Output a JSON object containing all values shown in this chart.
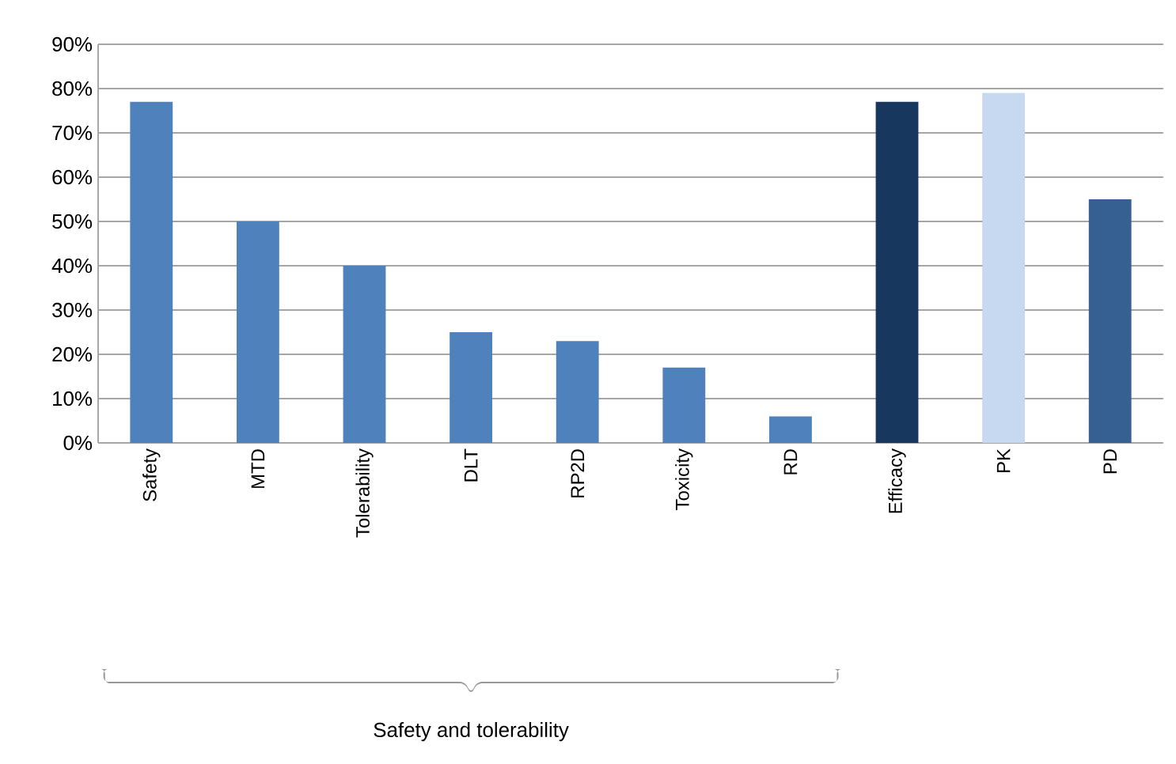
{
  "chart_data": {
    "type": "bar",
    "categories": [
      "Safety",
      "MTD",
      "Tolerability",
      "DLT",
      "RP2D",
      "Toxicity",
      "RD",
      "Efficacy",
      "PK",
      "PD"
    ],
    "values": [
      77,
      50,
      40,
      25,
      23,
      17,
      6,
      77,
      79,
      55
    ],
    "colors": [
      "#4f81bd",
      "#4f81bd",
      "#4f81bd",
      "#4f81bd",
      "#4f81bd",
      "#4f81bd",
      "#4f81bd",
      "#17375e",
      "#c6d9f0",
      "#366092"
    ],
    "ylim": [
      0,
      90
    ],
    "yticks": [
      {
        "value": 0,
        "label": "0%"
      },
      {
        "value": 10,
        "label": "10%"
      },
      {
        "value": 20,
        "label": "20%"
      },
      {
        "value": 30,
        "label": "30%"
      },
      {
        "value": 40,
        "label": "40%"
      },
      {
        "value": 50,
        "label": "50%"
      },
      {
        "value": 60,
        "label": "60%"
      },
      {
        "value": 70,
        "label": "70%"
      },
      {
        "value": 80,
        "label": "80%"
      },
      {
        "value": 90,
        "label": "90%"
      }
    ],
    "grid": "y",
    "annotations": [
      "Safety and tolerability"
    ]
  }
}
